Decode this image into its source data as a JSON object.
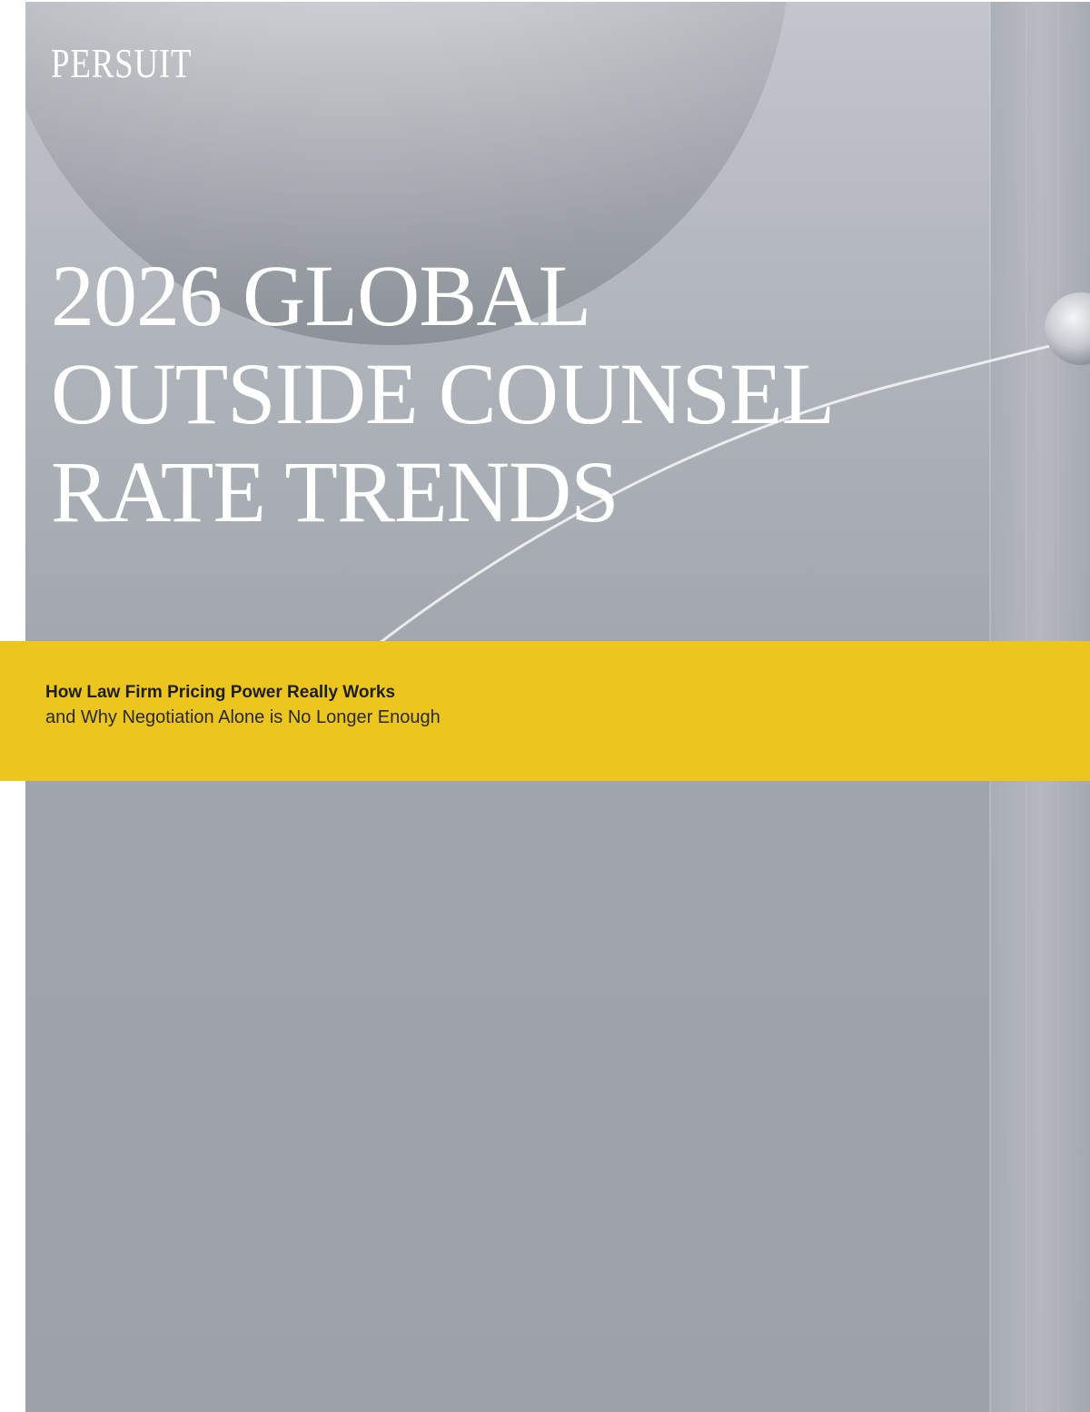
{
  "brand": {
    "logo_text": "PERSUIT"
  },
  "cover": {
    "title_lines": [
      "2026 GLOBAL",
      "OUTSIDE COUNSEL",
      "RATE TRENDS"
    ],
    "subtitle_bold": "How Law Firm Pricing Power Really Works",
    "subtitle_regular": "and Why Negotiation Alone is No Longer Enough"
  },
  "colors": {
    "background": "#9ea2aa",
    "banner": "#ecc51f",
    "title_text": "#ffffff",
    "subtitle_text": "#1e1e1e"
  }
}
